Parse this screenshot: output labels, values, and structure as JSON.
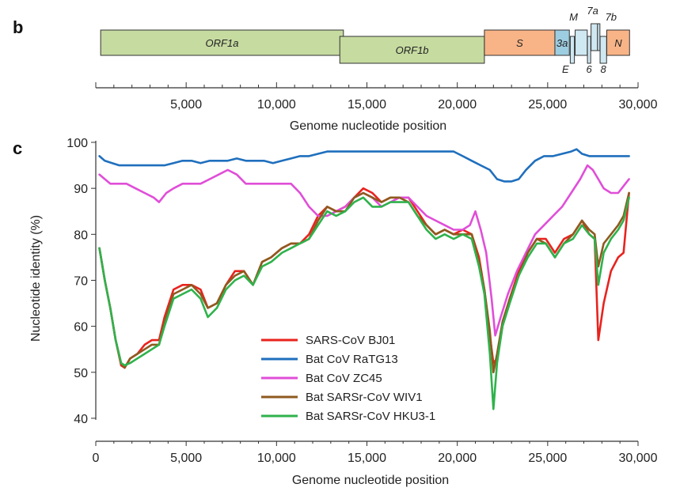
{
  "panel_b": {
    "letter": "b",
    "xlabel": "Genome nucleotide position",
    "xtick_labels": [
      "5,000",
      "10,000",
      "15,000",
      "20,000",
      "25,000",
      "30,000"
    ],
    "genes": [
      {
        "label": "ORF1a",
        "start": 270,
        "end": 13700,
        "row": "top",
        "color": "#c6dba0"
      },
      {
        "label": "ORF1b",
        "start": 13500,
        "end": 21500,
        "row": "low",
        "color": "#c6dba0"
      },
      {
        "label": "S",
        "start": 21500,
        "end": 25400,
        "row": "top",
        "color": "#f8b487"
      },
      {
        "label": "3a",
        "start": 25400,
        "end": 26200,
        "row": "top",
        "color": "#9dcde0"
      },
      {
        "label": "E",
        "start": 26250,
        "end": 26480,
        "row": "low",
        "color": "#cfe8f2"
      },
      {
        "label": "M",
        "start": 26520,
        "end": 27190,
        "row": "top",
        "color": "#cfe8f2"
      },
      {
        "label": "6",
        "start": 27200,
        "end": 27380,
        "row": "low",
        "color": "#cfe8f2"
      },
      {
        "label": "7a",
        "start": 27400,
        "end": 27760,
        "row": "high",
        "color": "#cfe8f2"
      },
      {
        "label": "7b",
        "start": 27760,
        "end": 27890,
        "row": "high",
        "color": "#cfe8f2"
      },
      {
        "label": "8",
        "start": 27900,
        "end": 28260,
        "row": "low",
        "color": "#cfe8f2"
      },
      {
        "label": "N",
        "start": 28270,
        "end": 29530,
        "row": "top",
        "color": "#f8b487"
      }
    ]
  },
  "panel_c": {
    "letter": "c"
  },
  "chart_data": {
    "type": "line",
    "title": "",
    "xlabel": "Genome nucleotide position",
    "ylabel": "Nucleotide identity (%)",
    "xlim": [
      0,
      30000
    ],
    "ylim": [
      35,
      100
    ],
    "xticks": [
      0,
      5000,
      10000,
      15000,
      20000,
      25000,
      30000
    ],
    "xtick_labels": [
      "0",
      "5,000",
      "10,000",
      "15,000",
      "20,000",
      "25,000",
      "30,000"
    ],
    "yticks": [
      40,
      50,
      60,
      70,
      80,
      90,
      100
    ],
    "ytick_labels": [
      "40",
      "50",
      "60",
      "70",
      "80",
      "90",
      "100"
    ],
    "legend_position": "lower-middle",
    "series": [
      {
        "name": "SARS-CoV BJ01",
        "color": "#e8231e",
        "x": [
          200,
          500,
          800,
          1100,
          1400,
          1600,
          1900,
          2300,
          2700,
          3100,
          3500,
          3800,
          4300,
          4800,
          5300,
          5800,
          6200,
          6700,
          7200,
          7700,
          8200,
          8700,
          9200,
          9700,
          10300,
          10800,
          11300,
          11800,
          12300,
          12800,
          13300,
          13800,
          14300,
          14800,
          15300,
          15800,
          16300,
          16800,
          17300,
          17800,
          18300,
          18800,
          19300,
          19800,
          20300,
          20800,
          21200,
          21500,
          21800,
          22000,
          22200,
          22500,
          22900,
          23400,
          23900,
          24400,
          24900,
          25400,
          25900,
          26400,
          26900,
          27300,
          27600,
          27800,
          28100,
          28500,
          28900,
          29200,
          29500
        ],
        "y": [
          77,
          70,
          64,
          57,
          51.5,
          51,
          53,
          54,
          56,
          57,
          57,
          62,
          68,
          69,
          69,
          68,
          64,
          65,
          69,
          72,
          72,
          69,
          74,
          75,
          77,
          78,
          78,
          80,
          84,
          86,
          85,
          86,
          88,
          90,
          89,
          87,
          88,
          88,
          88,
          85,
          82,
          80,
          81,
          80,
          81,
          80,
          75,
          68,
          58,
          52,
          53,
          60,
          66,
          72,
          76,
          79,
          79,
          76,
          79,
          80,
          83,
          80,
          79,
          57,
          65,
          72,
          75,
          76,
          89
        ]
      },
      {
        "name": "Bat CoV RaTG13",
        "color": "#1f6fbd",
        "x": [
          200,
          500,
          900,
          1300,
          1800,
          2300,
          2800,
          3300,
          3800,
          4300,
          4800,
          5300,
          5800,
          6300,
          6800,
          7300,
          7800,
          8300,
          8800,
          9300,
          9800,
          10300,
          10800,
          11300,
          11800,
          12300,
          12800,
          13300,
          13800,
          14300,
          14800,
          15300,
          15800,
          16300,
          16800,
          17300,
          17800,
          18300,
          18800,
          19300,
          19800,
          20300,
          20800,
          21300,
          21800,
          22200,
          22600,
          23000,
          23400,
          23800,
          24300,
          24800,
          25300,
          25800,
          26300,
          26600,
          26900,
          27300,
          27800,
          28300,
          28800,
          29500
        ],
        "y": [
          97,
          96,
          95.5,
          95,
          95,
          95,
          95,
          95,
          95,
          95.5,
          96,
          96,
          95.5,
          96,
          96,
          96,
          96.5,
          96,
          96,
          96,
          95.5,
          96,
          96.5,
          97,
          97,
          97.5,
          98,
          98,
          98,
          98,
          98,
          98,
          98,
          98,
          98,
          98,
          98,
          98,
          98,
          98,
          98,
          97,
          96,
          95,
          94,
          92,
          91.5,
          91.5,
          92,
          94,
          96,
          97,
          97,
          97.5,
          98,
          98.5,
          97.5,
          97,
          97,
          97,
          97,
          97
        ]
      },
      {
        "name": "Bat CoV ZC45",
        "color": "#e04ed8",
        "x": [
          200,
          500,
          800,
          1200,
          1700,
          2200,
          2700,
          3200,
          3500,
          3900,
          4300,
          4800,
          5300,
          5800,
          6300,
          6800,
          7300,
          7800,
          8300,
          8800,
          9300,
          9800,
          10300,
          10800,
          11300,
          11800,
          12300,
          12800,
          13300,
          13800,
          14300,
          14800,
          15300,
          15800,
          16300,
          16800,
          17300,
          17800,
          18300,
          18800,
          19300,
          19800,
          20300,
          20700,
          21000,
          21300,
          21600,
          21900,
          22100,
          22400,
          22800,
          23300,
          23800,
          24300,
          24800,
          25300,
          25800,
          26300,
          26800,
          27200,
          27500,
          27800,
          28100,
          28500,
          28900,
          29300,
          29500
        ],
        "y": [
          93,
          92,
          91,
          91,
          91,
          90,
          89,
          88,
          87,
          89,
          90,
          91,
          91,
          91,
          92,
          93,
          94,
          93,
          91,
          91,
          91,
          91,
          91,
          91,
          89,
          86,
          84,
          84,
          85,
          86,
          88,
          89,
          88,
          86,
          87,
          88,
          88,
          86,
          84,
          83,
          82,
          81,
          81,
          82,
          85,
          81,
          76,
          66,
          58,
          62,
          67,
          72,
          76,
          80,
          82,
          84,
          86,
          89,
          92,
          95,
          94,
          92,
          90,
          89,
          89,
          91,
          92
        ]
      },
      {
        "name": "Bat SARSr-CoV WIV1",
        "color": "#8e5a1f",
        "x": [
          200,
          500,
          800,
          1100,
          1400,
          1600,
          1900,
          2300,
          2700,
          3100,
          3500,
          3800,
          4300,
          4800,
          5300,
          5800,
          6200,
          6700,
          7200,
          7700,
          8200,
          8700,
          9200,
          9700,
          10300,
          10800,
          11300,
          11800,
          12300,
          12800,
          13300,
          13800,
          14300,
          14800,
          15300,
          15800,
          16300,
          16800,
          17300,
          17800,
          18300,
          18800,
          19300,
          19800,
          20300,
          20800,
          21200,
          21500,
          21800,
          22000,
          22200,
          22500,
          22900,
          23400,
          23900,
          24400,
          24900,
          25400,
          25900,
          26400,
          26900,
          27300,
          27600,
          27800,
          28100,
          28500,
          28900,
          29200,
          29500
        ],
        "y": [
          77,
          70,
          64,
          57,
          52,
          51,
          53,
          54,
          55,
          56,
          56,
          61,
          67,
          68,
          69,
          67,
          64,
          65,
          69,
          71,
          72,
          69,
          74,
          75,
          77,
          78,
          78,
          79,
          83,
          86,
          85,
          85,
          88,
          89,
          88,
          87,
          88,
          88,
          87,
          84,
          82,
          80,
          81,
          80,
          80,
          80,
          74,
          68,
          59,
          50,
          54,
          61,
          66,
          71,
          76,
          79,
          78,
          75,
          78,
          80,
          83,
          81,
          80,
          73,
          78,
          80,
          82,
          84,
          89
        ]
      },
      {
        "name": "Bat SARSr-CoV HKU3-1",
        "color": "#2fb24c",
        "x": [
          200,
          500,
          800,
          1100,
          1400,
          1600,
          1900,
          2300,
          2700,
          3100,
          3500,
          3800,
          4300,
          4800,
          5300,
          5800,
          6200,
          6700,
          7200,
          7700,
          8200,
          8700,
          9200,
          9700,
          10300,
          10800,
          11300,
          11800,
          12300,
          12800,
          13300,
          13800,
          14300,
          14800,
          15300,
          15800,
          16300,
          16800,
          17300,
          17800,
          18300,
          18800,
          19300,
          19800,
          20300,
          20800,
          21200,
          21500,
          21800,
          22000,
          22200,
          22500,
          22900,
          23400,
          23900,
          24400,
          24900,
          25400,
          25900,
          26400,
          26900,
          27300,
          27600,
          27800,
          28100,
          28500,
          28900,
          29200,
          29500
        ],
        "y": [
          77,
          70,
          64,
          57,
          52,
          51.5,
          52,
          53,
          54,
          55,
          56,
          60,
          66,
          67,
          68,
          66,
          62,
          64,
          68,
          70,
          71,
          69,
          73,
          74,
          76,
          77,
          78,
          79,
          82,
          85,
          84,
          85,
          87,
          88,
          86,
          86,
          87,
          87,
          87,
          84,
          81,
          79,
          80,
          79,
          80,
          79,
          73,
          67,
          54,
          42,
          52,
          60,
          65,
          71,
          75,
          78,
          78,
          75,
          78,
          79,
          82,
          80,
          79,
          69,
          76,
          79,
          81,
          83,
          88
        ]
      }
    ]
  }
}
